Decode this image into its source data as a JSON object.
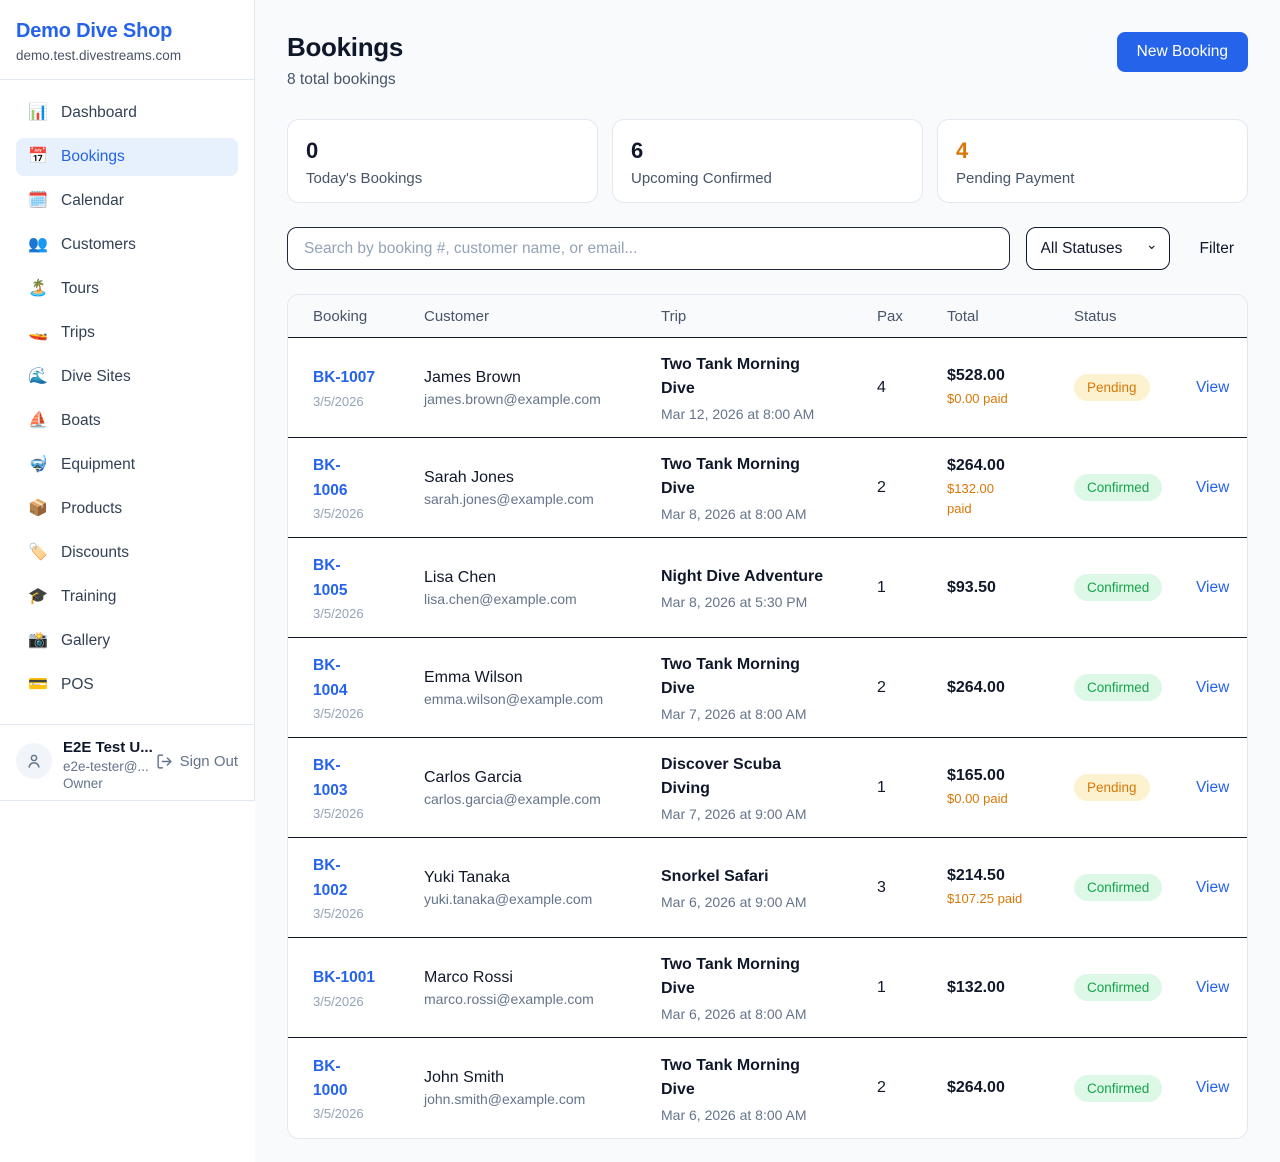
{
  "brand": {
    "name": "Demo Dive Shop",
    "domain": "demo.test.divestreams.com"
  },
  "sidebar": {
    "items": [
      {
        "slug": "dashboard",
        "icon": "📊",
        "icon_name": "bar-chart-icon",
        "label": "Dashboard",
        "active": false
      },
      {
        "slug": "bookings",
        "icon": "📅",
        "icon_name": "calendar-icon",
        "label": "Bookings",
        "active": true
      },
      {
        "slug": "calendar",
        "icon": "🗓️",
        "icon_name": "spiral-calendar-icon",
        "label": "Calendar",
        "active": false
      },
      {
        "slug": "customers",
        "icon": "👥",
        "icon_name": "people-icon",
        "label": "Customers",
        "active": false
      },
      {
        "slug": "tours",
        "icon": "🏝️",
        "icon_name": "island-icon",
        "label": "Tours",
        "active": false
      },
      {
        "slug": "trips",
        "icon": "🚤",
        "icon_name": "speedboat-icon",
        "label": "Trips",
        "active": false
      },
      {
        "slug": "dive-sites",
        "icon": "🌊",
        "icon_name": "wave-icon",
        "label": "Dive Sites",
        "active": false
      },
      {
        "slug": "boats",
        "icon": "⛵",
        "icon_name": "sailboat-icon",
        "label": "Boats",
        "active": false
      },
      {
        "slug": "equipment",
        "icon": "🤿",
        "icon_name": "diving-mask-icon",
        "label": "Equipment",
        "active": false
      },
      {
        "slug": "products",
        "icon": "📦",
        "icon_name": "package-icon",
        "label": "Products",
        "active": false
      },
      {
        "slug": "discounts",
        "icon": "🏷️",
        "icon_name": "tag-icon",
        "label": "Discounts",
        "active": false
      },
      {
        "slug": "training",
        "icon": "🎓",
        "icon_name": "graduation-cap-icon",
        "label": "Training",
        "active": false
      },
      {
        "slug": "gallery",
        "icon": "📸",
        "icon_name": "camera-icon",
        "label": "Gallery",
        "active": false
      },
      {
        "slug": "pos",
        "icon": "💳",
        "icon_name": "credit-card-icon",
        "label": "POS",
        "active": false
      }
    ]
  },
  "user": {
    "name": "E2E Test U...",
    "email": "e2e-tester@...",
    "role": "Owner",
    "sign_out_label": "Sign Out"
  },
  "header": {
    "title": "Bookings",
    "subtitle": "8 total bookings",
    "new_booking_label": "New Booking"
  },
  "stats": [
    {
      "value": "0",
      "label": "Today's Bookings"
    },
    {
      "value": "6",
      "label": "Upcoming Confirmed"
    },
    {
      "value": "4",
      "label": "Pending Payment",
      "accent": "#d97706"
    }
  ],
  "filters": {
    "search_placeholder": "Search by booking #, customer name, or email...",
    "status_selected": "All Statuses",
    "filter_label": "Filter"
  },
  "table": {
    "columns": [
      "Booking",
      "Customer",
      "Trip",
      "Pax",
      "Total",
      "Status"
    ],
    "rows": [
      {
        "id": "BK-1007",
        "date": "3/5/2026",
        "name": "James Brown",
        "email": "james.brown@example.com",
        "trip": "Two Tank Morning\nDive",
        "when": "Mar 12, 2026 at 8:00 AM",
        "pax": "4",
        "total": "$528.00",
        "paid": "$0.00 paid",
        "status": "Pending",
        "view": "View"
      },
      {
        "id": "BK-\n1006",
        "date": "3/5/2026",
        "name": "Sarah Jones",
        "email": "sarah.jones@example.com",
        "trip": "Two Tank Morning\nDive",
        "when": "Mar 8, 2026 at 8:00 AM",
        "pax": "2",
        "total": "$264.00",
        "paid": "$132.00\npaid",
        "status": "Confirmed",
        "view": "View"
      },
      {
        "id": "BK-\n1005",
        "date": "3/5/2026",
        "name": "Lisa Chen",
        "email": "lisa.chen@example.com",
        "trip": "Night Dive Adventure",
        "when": "Mar 8, 2026 at 5:30 PM",
        "pax": "1",
        "total": "$93.50",
        "paid": "",
        "status": "Confirmed",
        "view": "View"
      },
      {
        "id": "BK-\n1004",
        "date": "3/5/2026",
        "name": "Emma Wilson",
        "email": "emma.wilson@example.com",
        "trip": "Two Tank Morning\nDive",
        "when": "Mar 7, 2026 at 8:00 AM",
        "pax": "2",
        "total": "$264.00",
        "paid": "",
        "status": "Confirmed",
        "view": "View"
      },
      {
        "id": "BK-\n1003",
        "date": "3/5/2026",
        "name": "Carlos Garcia",
        "email": "carlos.garcia@example.com",
        "trip": "Discover Scuba\nDiving",
        "when": "Mar 7, 2026 at 9:00 AM",
        "pax": "1",
        "total": "$165.00",
        "paid": "$0.00 paid",
        "status": "Pending",
        "view": "View"
      },
      {
        "id": "BK-\n1002",
        "date": "3/5/2026",
        "name": "Yuki Tanaka",
        "email": "yuki.tanaka@example.com",
        "trip": "Snorkel Safari",
        "when": "Mar 6, 2026 at 9:00 AM",
        "pax": "3",
        "total": "$214.50",
        "paid": "$107.25 paid",
        "status": "Confirmed",
        "view": "View"
      },
      {
        "id": "BK-1001",
        "date": "3/5/2026",
        "name": "Marco Rossi",
        "email": "marco.rossi@example.com",
        "trip": "Two Tank Morning\nDive",
        "when": "Mar 6, 2026 at 8:00 AM",
        "pax": "1",
        "total": "$132.00",
        "paid": "",
        "status": "Confirmed",
        "view": "View"
      },
      {
        "id": "BK-\n1000",
        "date": "3/5/2026",
        "name": "John Smith",
        "email": "john.smith@example.com",
        "trip": "Two Tank Morning\nDive",
        "when": "Mar 6, 2026 at 8:00 AM",
        "pax": "2",
        "total": "$264.00",
        "paid": "",
        "status": "Confirmed",
        "view": "View"
      }
    ]
  },
  "colors": {
    "accent_blue": "#2563eb",
    "pending_text": "#d97706",
    "pending_bg": "#fdf2cf",
    "confirmed_text": "#16a34a",
    "confirmed_bg": "#ddf8e7",
    "paid_orange": "#d97706"
  }
}
